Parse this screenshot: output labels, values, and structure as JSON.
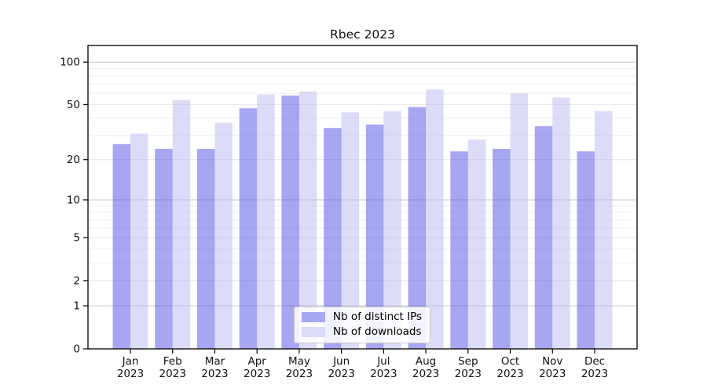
{
  "chart_data": {
    "type": "bar",
    "title": "Rbec 2023",
    "categories": [
      "Jan 2023",
      "Feb 2023",
      "Mar 2023",
      "Apr 2023",
      "May 2023",
      "Jun 2023",
      "Jul 2023",
      "Aug 2023",
      "Sep 2023",
      "Oct 2023",
      "Nov 2023",
      "Dec 2023"
    ],
    "series": [
      {
        "name": "Nb of distinct IPs",
        "color": "#a6a6f2",
        "values": [
          26,
          24,
          24,
          47,
          58,
          34,
          36,
          48,
          23,
          24,
          35,
          23
        ]
      },
      {
        "name": "Nb of downloads",
        "color": "#dcdcf8",
        "values": [
          31,
          54,
          37,
          59,
          62,
          44,
          45,
          64,
          28,
          60,
          56,
          45
        ]
      }
    ],
    "y_axis": {
      "scale": "log1p",
      "ticks": [
        0,
        1,
        2,
        5,
        10,
        20,
        50,
        100
      ],
      "tick_labels": [
        "0",
        "1",
        "2",
        "5",
        "10",
        "20",
        "50",
        "100"
      ],
      "minor_ticks": [
        3,
        4,
        6,
        7,
        8,
        9,
        30,
        40,
        60,
        70,
        80,
        90
      ],
      "max": 131,
      "grid_colors": {
        "decade": "#c6c6c6",
        "labeled": "#e4e4e4",
        "minor": "#efefef"
      }
    },
    "ylim": [
      0,
      131
    ],
    "grid": true,
    "legend_position": "lower center",
    "bar_alpha": 0.5,
    "axis_color": "#000000",
    "text_color": "#111111"
  }
}
